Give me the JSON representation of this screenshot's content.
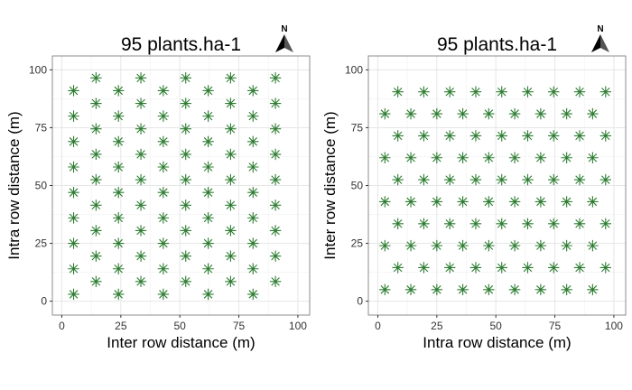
{
  "chart_data": [
    {
      "type": "scatter",
      "title": "95  plants.ha-1",
      "xlabel": "Inter row distance (m)",
      "ylabel": "Intra row distance (m)",
      "xlim": [
        -4,
        105
      ],
      "ylim": [
        -6,
        106
      ],
      "xticks": [
        0,
        25,
        50,
        75,
        100
      ],
      "yticks": [
        0,
        25,
        50,
        75,
        100
      ],
      "xtick_labels": [
        "0",
        "25",
        "50",
        "75",
        "100"
      ],
      "ytick_labels": [
        "0",
        "25",
        "50",
        "75",
        "100"
      ],
      "grid": true,
      "marker": "asterisk",
      "marker_color": "#2e7d32",
      "north_arrow": "N",
      "points": [
        {
          "x": 5,
          "y": 3
        },
        {
          "x": 5,
          "y": 14
        },
        {
          "x": 5,
          "y": 25
        },
        {
          "x": 5,
          "y": 36
        },
        {
          "x": 5,
          "y": 47
        },
        {
          "x": 5,
          "y": 58
        },
        {
          "x": 5,
          "y": 69
        },
        {
          "x": 5,
          "y": 80
        },
        {
          "x": 5,
          "y": 91
        },
        {
          "x": 14.5,
          "y": 8.5
        },
        {
          "x": 14.5,
          "y": 19.5
        },
        {
          "x": 14.5,
          "y": 30.5
        },
        {
          "x": 14.5,
          "y": 41.5
        },
        {
          "x": 14.5,
          "y": 52.5
        },
        {
          "x": 14.5,
          "y": 63.5
        },
        {
          "x": 14.5,
          "y": 74.5
        },
        {
          "x": 14.5,
          "y": 85.5
        },
        {
          "x": 14.5,
          "y": 96.5
        },
        {
          "x": 24,
          "y": 3
        },
        {
          "x": 24,
          "y": 14
        },
        {
          "x": 24,
          "y": 25
        },
        {
          "x": 24,
          "y": 36
        },
        {
          "x": 24,
          "y": 47
        },
        {
          "x": 24,
          "y": 58
        },
        {
          "x": 24,
          "y": 69
        },
        {
          "x": 24,
          "y": 80
        },
        {
          "x": 24,
          "y": 91
        },
        {
          "x": 33.5,
          "y": 8.5
        },
        {
          "x": 33.5,
          "y": 19.5
        },
        {
          "x": 33.5,
          "y": 30.5
        },
        {
          "x": 33.5,
          "y": 41.5
        },
        {
          "x": 33.5,
          "y": 52.5
        },
        {
          "x": 33.5,
          "y": 63.5
        },
        {
          "x": 33.5,
          "y": 74.5
        },
        {
          "x": 33.5,
          "y": 85.5
        },
        {
          "x": 33.5,
          "y": 96.5
        },
        {
          "x": 43,
          "y": 3
        },
        {
          "x": 43,
          "y": 14
        },
        {
          "x": 43,
          "y": 25
        },
        {
          "x": 43,
          "y": 36
        },
        {
          "x": 43,
          "y": 47
        },
        {
          "x": 43,
          "y": 58
        },
        {
          "x": 43,
          "y": 69
        },
        {
          "x": 43,
          "y": 80
        },
        {
          "x": 43,
          "y": 91
        },
        {
          "x": 52.5,
          "y": 8.5
        },
        {
          "x": 52.5,
          "y": 19.5
        },
        {
          "x": 52.5,
          "y": 30.5
        },
        {
          "x": 52.5,
          "y": 41.5
        },
        {
          "x": 52.5,
          "y": 52.5
        },
        {
          "x": 52.5,
          "y": 63.5
        },
        {
          "x": 52.5,
          "y": 74.5
        },
        {
          "x": 52.5,
          "y": 85.5
        },
        {
          "x": 52.5,
          "y": 96.5
        },
        {
          "x": 62,
          "y": 3
        },
        {
          "x": 62,
          "y": 14
        },
        {
          "x": 62,
          "y": 25
        },
        {
          "x": 62,
          "y": 36
        },
        {
          "x": 62,
          "y": 47
        },
        {
          "x": 62,
          "y": 58
        },
        {
          "x": 62,
          "y": 69
        },
        {
          "x": 62,
          "y": 80
        },
        {
          "x": 62,
          "y": 91
        },
        {
          "x": 71.5,
          "y": 8.5
        },
        {
          "x": 71.5,
          "y": 19.5
        },
        {
          "x": 71.5,
          "y": 30.5
        },
        {
          "x": 71.5,
          "y": 41.5
        },
        {
          "x": 71.5,
          "y": 52.5
        },
        {
          "x": 71.5,
          "y": 63.5
        },
        {
          "x": 71.5,
          "y": 74.5
        },
        {
          "x": 71.5,
          "y": 85.5
        },
        {
          "x": 71.5,
          "y": 96.5
        },
        {
          "x": 81,
          "y": 3
        },
        {
          "x": 81,
          "y": 14
        },
        {
          "x": 81,
          "y": 25
        },
        {
          "x": 81,
          "y": 36
        },
        {
          "x": 81,
          "y": 47
        },
        {
          "x": 81,
          "y": 58
        },
        {
          "x": 81,
          "y": 69
        },
        {
          "x": 81,
          "y": 80
        },
        {
          "x": 81,
          "y": 91
        },
        {
          "x": 90.5,
          "y": 8.5
        },
        {
          "x": 90.5,
          "y": 19.5
        },
        {
          "x": 90.5,
          "y": 30.5
        },
        {
          "x": 90.5,
          "y": 41.5
        },
        {
          "x": 90.5,
          "y": 52.5
        },
        {
          "x": 90.5,
          "y": 63.5
        },
        {
          "x": 90.5,
          "y": 74.5
        },
        {
          "x": 90.5,
          "y": 85.5
        },
        {
          "x": 90.5,
          "y": 96.5
        }
      ]
    },
    {
      "type": "scatter",
      "title": "95  plants.ha-1",
      "xlabel": "Intra row distance (m)",
      "ylabel": "Inter row distance (m)",
      "xlim": [
        -4,
        105
      ],
      "ylim": [
        -6,
        106
      ],
      "xticks": [
        0,
        25,
        50,
        75,
        100
      ],
      "yticks": [
        0,
        25,
        50,
        75,
        100
      ],
      "xtick_labels": [
        "0",
        "25",
        "50",
        "75",
        "100"
      ],
      "ytick_labels": [
        "0",
        "25",
        "50",
        "75",
        "100"
      ],
      "grid": true,
      "marker": "asterisk",
      "marker_color": "#2e7d32",
      "north_arrow": "N",
      "points": [
        {
          "x": 3,
          "y": 5
        },
        {
          "x": 14,
          "y": 5
        },
        {
          "x": 25,
          "y": 5
        },
        {
          "x": 36,
          "y": 5
        },
        {
          "x": 47,
          "y": 5
        },
        {
          "x": 58,
          "y": 5
        },
        {
          "x": 69,
          "y": 5
        },
        {
          "x": 80,
          "y": 5
        },
        {
          "x": 91,
          "y": 5
        },
        {
          "x": 8.5,
          "y": 14.5
        },
        {
          "x": 19.5,
          "y": 14.5
        },
        {
          "x": 30.5,
          "y": 14.5
        },
        {
          "x": 41.5,
          "y": 14.5
        },
        {
          "x": 52.5,
          "y": 14.5
        },
        {
          "x": 63.5,
          "y": 14.5
        },
        {
          "x": 74.5,
          "y": 14.5
        },
        {
          "x": 85.5,
          "y": 14.5
        },
        {
          "x": 96.5,
          "y": 14.5
        },
        {
          "x": 3,
          "y": 24
        },
        {
          "x": 14,
          "y": 24
        },
        {
          "x": 25,
          "y": 24
        },
        {
          "x": 36,
          "y": 24
        },
        {
          "x": 47,
          "y": 24
        },
        {
          "x": 58,
          "y": 24
        },
        {
          "x": 69,
          "y": 24
        },
        {
          "x": 80,
          "y": 24
        },
        {
          "x": 91,
          "y": 24
        },
        {
          "x": 8.5,
          "y": 33.5
        },
        {
          "x": 19.5,
          "y": 33.5
        },
        {
          "x": 30.5,
          "y": 33.5
        },
        {
          "x": 41.5,
          "y": 33.5
        },
        {
          "x": 52.5,
          "y": 33.5
        },
        {
          "x": 63.5,
          "y": 33.5
        },
        {
          "x": 74.5,
          "y": 33.5
        },
        {
          "x": 85.5,
          "y": 33.5
        },
        {
          "x": 96.5,
          "y": 33.5
        },
        {
          "x": 3,
          "y": 43
        },
        {
          "x": 14,
          "y": 43
        },
        {
          "x": 25,
          "y": 43
        },
        {
          "x": 36,
          "y": 43
        },
        {
          "x": 47,
          "y": 43
        },
        {
          "x": 58,
          "y": 43
        },
        {
          "x": 69,
          "y": 43
        },
        {
          "x": 80,
          "y": 43
        },
        {
          "x": 91,
          "y": 43
        },
        {
          "x": 8.5,
          "y": 52.5
        },
        {
          "x": 19.5,
          "y": 52.5
        },
        {
          "x": 30.5,
          "y": 52.5
        },
        {
          "x": 41.5,
          "y": 52.5
        },
        {
          "x": 52.5,
          "y": 52.5
        },
        {
          "x": 63.5,
          "y": 52.5
        },
        {
          "x": 74.5,
          "y": 52.5
        },
        {
          "x": 85.5,
          "y": 52.5
        },
        {
          "x": 96.5,
          "y": 52.5
        },
        {
          "x": 3,
          "y": 62
        },
        {
          "x": 14,
          "y": 62
        },
        {
          "x": 25,
          "y": 62
        },
        {
          "x": 36,
          "y": 62
        },
        {
          "x": 47,
          "y": 62
        },
        {
          "x": 58,
          "y": 62
        },
        {
          "x": 69,
          "y": 62
        },
        {
          "x": 80,
          "y": 62
        },
        {
          "x": 91,
          "y": 62
        },
        {
          "x": 8.5,
          "y": 71.5
        },
        {
          "x": 19.5,
          "y": 71.5
        },
        {
          "x": 30.5,
          "y": 71.5
        },
        {
          "x": 41.5,
          "y": 71.5
        },
        {
          "x": 52.5,
          "y": 71.5
        },
        {
          "x": 63.5,
          "y": 71.5
        },
        {
          "x": 74.5,
          "y": 71.5
        },
        {
          "x": 85.5,
          "y": 71.5
        },
        {
          "x": 96.5,
          "y": 71.5
        },
        {
          "x": 3,
          "y": 81
        },
        {
          "x": 14,
          "y": 81
        },
        {
          "x": 25,
          "y": 81
        },
        {
          "x": 36,
          "y": 81
        },
        {
          "x": 47,
          "y": 81
        },
        {
          "x": 58,
          "y": 81
        },
        {
          "x": 69,
          "y": 81
        },
        {
          "x": 80,
          "y": 81
        },
        {
          "x": 91,
          "y": 81
        },
        {
          "x": 8.5,
          "y": 90.5
        },
        {
          "x": 19.5,
          "y": 90.5
        },
        {
          "x": 30.5,
          "y": 90.5
        },
        {
          "x": 41.5,
          "y": 90.5
        },
        {
          "x": 52.5,
          "y": 90.5
        },
        {
          "x": 63.5,
          "y": 90.5
        },
        {
          "x": 74.5,
          "y": 90.5
        },
        {
          "x": 85.5,
          "y": 90.5
        },
        {
          "x": 96.5,
          "y": 90.5
        }
      ]
    }
  ]
}
